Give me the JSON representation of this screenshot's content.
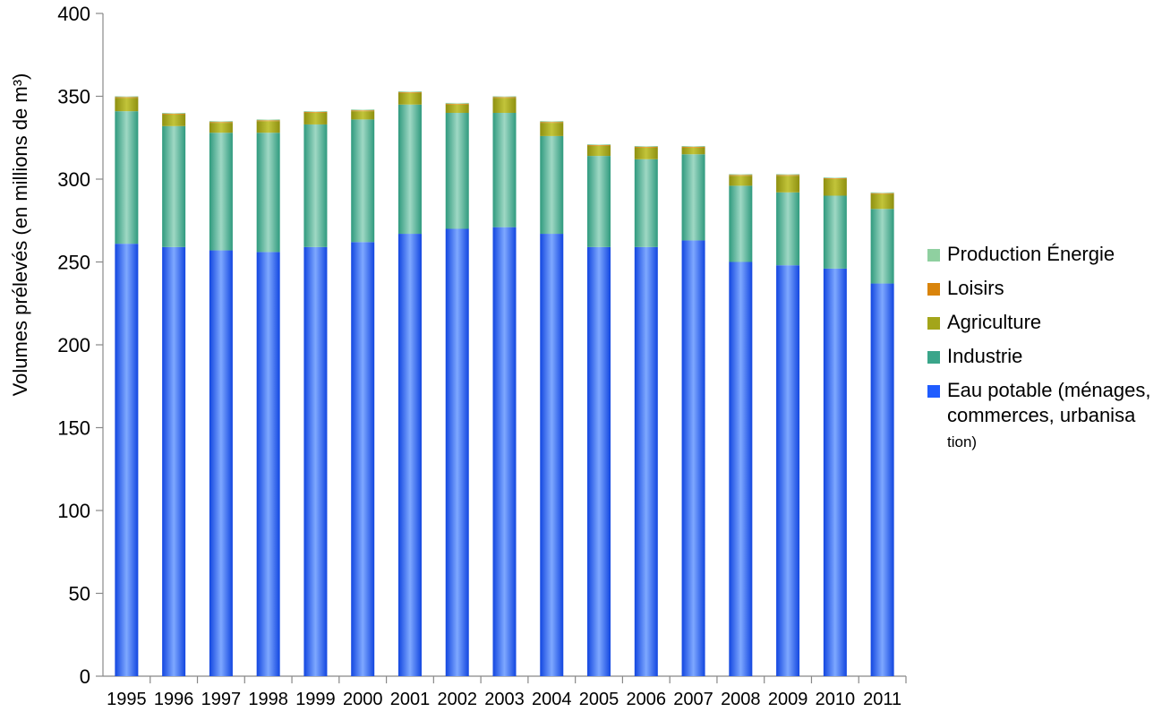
{
  "chart_data": {
    "type": "bar",
    "stacked": true,
    "ylabel": "Volumes prélevés (en millions de m³)",
    "ylim": [
      0,
      400
    ],
    "yticks": [
      0,
      50,
      100,
      150,
      200,
      250,
      300,
      350,
      400
    ],
    "categories": [
      "1995",
      "1996",
      "1997",
      "1998",
      "1999",
      "2000",
      "2001",
      "2002",
      "2003",
      "2004",
      "2005",
      "2006",
      "2007",
      "2008",
      "2009",
      "2010",
      "2011"
    ],
    "series": [
      {
        "name": "Eau potable (ménages, commerces, urbanisation)",
        "color": "#1f5cff",
        "values": [
          261,
          259,
          257,
          256,
          259,
          262,
          267,
          270,
          271,
          267,
          259,
          259,
          263,
          250,
          248,
          246,
          237
        ]
      },
      {
        "name": "Industrie",
        "color": "#3aa58a",
        "values": [
          80,
          73,
          71,
          72,
          74,
          74,
          78,
          70,
          69,
          59,
          55,
          53,
          52,
          46,
          44,
          44,
          45
        ]
      },
      {
        "name": "Agriculture",
        "color": "#a3a51a",
        "values": [
          8,
          7,
          6,
          7,
          7,
          5,
          7,
          5,
          9,
          8,
          6,
          7,
          4,
          6,
          10,
          10,
          9
        ]
      },
      {
        "name": "Loisirs",
        "color": "#d9840b",
        "values": [
          0.5,
          0.5,
          0.5,
          0.5,
          0.5,
          0.5,
          0.5,
          0.5,
          0.5,
          0.5,
          0.5,
          0.5,
          0.5,
          0.5,
          0.5,
          0.5,
          0.5
        ]
      },
      {
        "name": "Production Énergie",
        "color": "#8fd0a0",
        "values": [
          0.5,
          0.5,
          0.5,
          0.5,
          0.5,
          0.5,
          0.5,
          0.5,
          0.5,
          0.5,
          0.5,
          0.5,
          0.5,
          0.5,
          0.5,
          0.5,
          0.5
        ]
      }
    ],
    "legend": {
      "placement": "right",
      "items": [
        {
          "label": "Production Énergie",
          "color": "#8fd0a0"
        },
        {
          "label": "Loisirs",
          "color": "#d9840b"
        },
        {
          "label": "Agriculture",
          "color": "#a3a51a"
        },
        {
          "label": "Industrie",
          "color": "#3aa58a"
        },
        {
          "label_lines": [
            "Eau potable (ménages,",
            "commerces, urbanisa",
            "tion)"
          ],
          "color": "#1f5cff"
        }
      ]
    }
  }
}
